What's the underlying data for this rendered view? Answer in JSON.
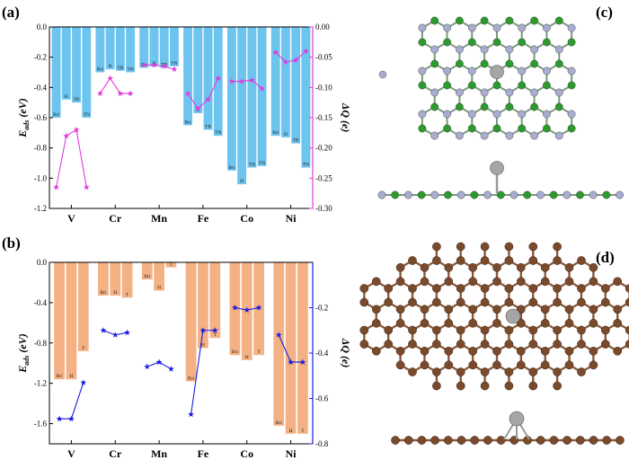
{
  "panel_labels": [
    "(a)",
    "(b)",
    "(c)",
    "(d)"
  ],
  "colors": {
    "bar_a": "#6cc4ef",
    "bar_b": "#f4b183",
    "line_a": "#e03cdc",
    "line_b": "#1c1ce0",
    "atom_green": "#2d9a2d",
    "atom_lavender": "#a8acd0",
    "atom_brown": "#7a4a2c",
    "atom_metal": "#a6a6a6"
  },
  "chart_data": [
    {
      "type": "bar",
      "panel": "(a)",
      "categories": [
        "V",
        "Cr",
        "Mn",
        "Fe",
        "Co",
        "Ni"
      ],
      "site_labels": [
        [
          "Bri",
          "H",
          "TB",
          "TN"
        ],
        [
          "Bri",
          "H",
          "TB",
          "TN"
        ],
        [
          "Bri",
          "H",
          "TB",
          "TN"
        ],
        [
          "Bri",
          "H",
          "TB",
          "TN"
        ],
        [
          "Bri",
          "H",
          "TB",
          "TN"
        ],
        [
          "Bri",
          "H",
          "TB",
          "TN"
        ]
      ],
      "eads": [
        [
          -0.6,
          -0.48,
          -0.5,
          -0.6
        ],
        [
          -0.3,
          -0.28,
          -0.29,
          -0.3
        ],
        [
          -0.27,
          -0.26,
          -0.27,
          -0.26
        ],
        [
          -0.65,
          -0.57,
          -0.68,
          -0.72
        ],
        [
          -0.95,
          -1.04,
          -0.93,
          -0.92
        ],
        [
          -0.72,
          -0.73,
          -0.77,
          -0.93
        ]
      ],
      "dq": [
        [
          -0.265,
          -0.18,
          -0.17,
          -0.265
        ],
        [
          -0.11,
          -0.085,
          -0.11,
          -0.11
        ],
        [
          -0.063,
          -0.063,
          -0.065,
          -0.07
        ],
        [
          -0.11,
          -0.135,
          -0.12,
          -0.085
        ],
        [
          -0.09,
          -0.09,
          -0.088,
          -0.102
        ],
        [
          -0.042,
          -0.058,
          -0.055,
          -0.04
        ]
      ],
      "ylabel": "Eads (eV)",
      "y2label": "ΔQ (e)",
      "ylim": [
        -1.2,
        0.0
      ],
      "y2lim": [
        -0.3,
        0.0
      ],
      "yticks": [
        "0.0",
        "-0.2",
        "-0.4",
        "-0.6",
        "-0.8",
        "-1.0",
        "-1.2"
      ],
      "y2ticks": [
        "0.00",
        "-0.05",
        "-0.10",
        "-0.15",
        "-0.20",
        "-0.25",
        "-0.30"
      ]
    },
    {
      "type": "bar",
      "panel": "(b)",
      "categories": [
        "V",
        "Cr",
        "Mn",
        "Fe",
        "Co",
        "Ni"
      ],
      "site_labels": [
        [
          "Bri",
          "H",
          "T"
        ],
        [
          "Bri",
          "H",
          "T"
        ],
        [
          "Bri",
          "H",
          "T"
        ],
        [
          "Bri",
          "H",
          "T"
        ],
        [
          "Bri",
          "H",
          "T"
        ],
        [
          "Bri",
          "H",
          "T"
        ]
      ],
      "eads": [
        [
          -1.16,
          -1.16,
          -0.88
        ],
        [
          -0.33,
          -0.33,
          -0.35
        ],
        [
          -0.17,
          -0.28,
          -0.05
        ],
        [
          -1.18,
          -0.85,
          -0.75
        ],
        [
          -0.92,
          -0.97,
          -0.92
        ],
        [
          -1.62,
          -1.7,
          -1.7
        ]
      ],
      "dq": [
        [
          -0.69,
          -0.69,
          -0.53
        ],
        [
          -0.3,
          -0.32,
          -0.31
        ],
        [
          -0.46,
          -0.44,
          -0.47
        ],
        [
          -0.67,
          -0.3,
          -0.3
        ],
        [
          -0.2,
          -0.21,
          -0.2
        ],
        [
          -0.32,
          -0.44,
          -0.44
        ]
      ],
      "ylabel": "Eads (eV)",
      "y2label": "ΔQ (e)",
      "ylim": [
        -1.8,
        0.0
      ],
      "y2lim": [
        -0.8,
        0.0
      ],
      "yticks": [
        "0.0",
        "-0.4",
        "-0.8",
        "-1.2",
        "-1.6"
      ],
      "y2ticks": [
        "-0.2",
        "-0.4",
        "-0.6",
        "-0.8"
      ]
    }
  ]
}
